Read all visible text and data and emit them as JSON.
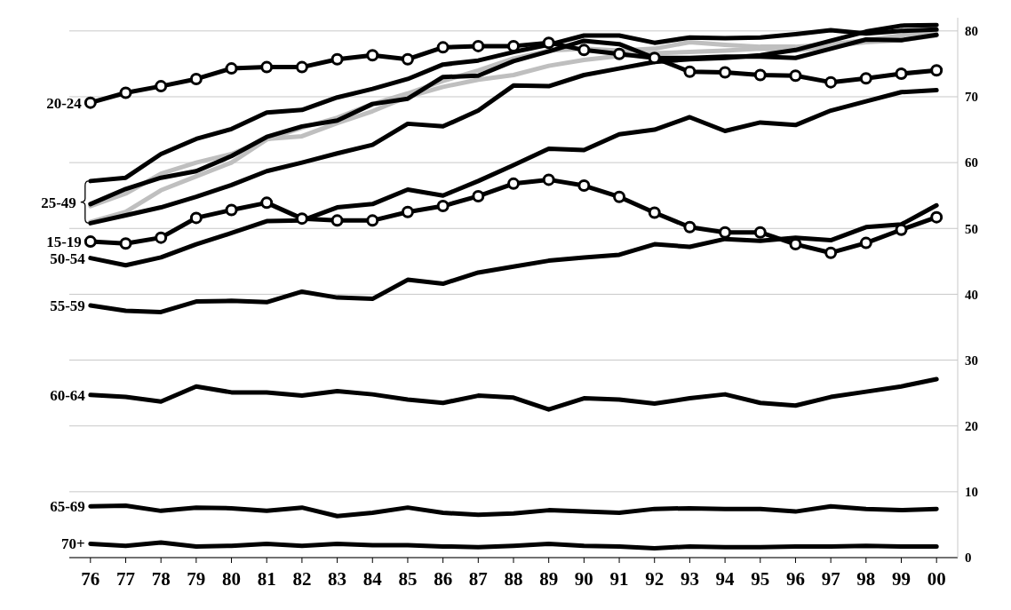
{
  "chart_data": {
    "type": "line",
    "categories": [
      "76",
      "77",
      "78",
      "79",
      "80",
      "81",
      "82",
      "83",
      "84",
      "85",
      "86",
      "87",
      "88",
      "89",
      "90",
      "91",
      "92",
      "93",
      "94",
      "95",
      "96",
      "97",
      "98",
      "99",
      "00"
    ],
    "ylim": [
      0,
      82
    ],
    "yticks": [
      0,
      10,
      20,
      30,
      40,
      50,
      60,
      70,
      80
    ],
    "grid": "y",
    "line_style": "solid",
    "series": [
      {
        "color": "#bfbfbf",
        "values": [
          53.4,
          55.3,
          58.3,
          60.0,
          61.3,
          63.6,
          64.0,
          66.0,
          67.8,
          70.0,
          71.5,
          72.6,
          73.3,
          74.7,
          75.6,
          76.2,
          76.6,
          76.8,
          77.0,
          77.3,
          77.0,
          77.7,
          78.3,
          78.6,
          79.3
        ]
      },
      {
        "color": "#bfbfbf",
        "values": [
          51.0,
          52.5,
          55.8,
          57.9,
          60.0,
          63.5,
          65.3,
          66.8,
          68.9,
          70.5,
          72.4,
          74.0,
          75.8,
          77.0,
          77.3,
          77.0,
          77.3,
          78.3,
          77.9,
          77.6,
          77.6,
          78.0,
          78.6,
          79.3,
          80.0
        ]
      },
      {
        "name": "20-24",
        "color": "#000000",
        "marker": "circle",
        "values": [
          69.1,
          70.6,
          71.6,
          72.7,
          74.3,
          74.5,
          74.5,
          75.7,
          76.3,
          75.7,
          77.5,
          77.7,
          77.7,
          78.2,
          77.1,
          76.5,
          75.9,
          73.8,
          73.7,
          73.3,
          73.2,
          72.2,
          72.8,
          73.5,
          74.0
        ]
      },
      {
        "color": "#000000",
        "values": [
          57.2,
          57.7,
          61.3,
          63.6,
          65.1,
          67.6,
          68.0,
          69.9,
          71.2,
          72.7,
          74.9,
          75.5,
          76.8,
          77.9,
          79.3,
          79.3,
          78.2,
          79.0,
          78.9,
          79.0,
          79.5,
          80.1,
          79.6,
          80.0,
          80.2
        ]
      },
      {
        "name": "25-49",
        "color": "#000000",
        "values": [
          53.7,
          56.0,
          57.7,
          58.7,
          61.0,
          63.9,
          65.5,
          66.4,
          68.9,
          69.7,
          73.0,
          73.2,
          75.4,
          76.9,
          78.5,
          78.0,
          75.9,
          75.9,
          76.1,
          76.1,
          75.9,
          77.3,
          78.7,
          78.6,
          79.4
        ]
      },
      {
        "color": "#000000",
        "values": [
          50.8,
          52.0,
          53.2,
          54.8,
          56.6,
          58.7,
          60.0,
          61.4,
          62.7,
          65.9,
          65.5,
          67.9,
          71.7,
          71.6,
          73.3,
          74.3,
          75.3,
          75.7,
          75.9,
          76.3,
          77.1,
          78.5,
          79.9,
          80.8,
          80.9
        ]
      },
      {
        "name": "15-19",
        "color": "#000000",
        "marker": "circle",
        "values": [
          48.0,
          47.7,
          48.6,
          51.6,
          52.8,
          53.9,
          51.5,
          51.2,
          51.2,
          52.5,
          53.4,
          54.9,
          56.8,
          57.4,
          56.5,
          54.8,
          52.4,
          50.2,
          49.4,
          49.4,
          47.6,
          46.3,
          47.8,
          49.8,
          51.7
        ]
      },
      {
        "name": "50-54",
        "color": "#000000",
        "values": [
          45.5,
          44.4,
          45.6,
          47.6,
          49.3,
          51.1,
          51.2,
          53.2,
          53.7,
          55.9,
          55.0,
          57.2,
          59.6,
          62.1,
          61.9,
          64.3,
          65.0,
          66.9,
          64.8,
          66.1,
          65.7,
          67.9,
          69.3,
          70.7,
          71.0
        ]
      },
      {
        "name": "55-59",
        "color": "#000000",
        "values": [
          38.3,
          37.5,
          37.3,
          38.9,
          39.0,
          38.8,
          40.4,
          39.5,
          39.3,
          42.2,
          41.6,
          43.3,
          44.2,
          45.1,
          45.6,
          46.0,
          47.6,
          47.2,
          48.4,
          48.1,
          48.6,
          48.2,
          50.2,
          50.6,
          53.5
        ]
      },
      {
        "name": "60-64",
        "color": "#000000",
        "values": [
          24.7,
          24.4,
          23.7,
          26.0,
          25.1,
          25.1,
          24.6,
          25.3,
          24.8,
          24.0,
          23.5,
          24.6,
          24.3,
          22.5,
          24.2,
          24.0,
          23.4,
          24.2,
          24.8,
          23.5,
          23.1,
          24.4,
          25.2,
          26.0,
          27.1
        ]
      },
      {
        "name": "65-69",
        "color": "#000000",
        "values": [
          7.8,
          7.9,
          7.1,
          7.6,
          7.5,
          7.1,
          7.6,
          6.3,
          6.8,
          7.6,
          6.8,
          6.5,
          6.7,
          7.2,
          7.0,
          6.8,
          7.4,
          7.5,
          7.4,
          7.4,
          7.0,
          7.8,
          7.4,
          7.2,
          7.4
        ]
      },
      {
        "name": "70+",
        "color": "#000000",
        "values": [
          2.1,
          1.8,
          2.3,
          1.7,
          1.8,
          2.1,
          1.8,
          2.1,
          1.9,
          1.9,
          1.7,
          1.6,
          1.8,
          2.1,
          1.8,
          1.7,
          1.4,
          1.7,
          1.6,
          1.6,
          1.7,
          1.7,
          1.8,
          1.7,
          1.7
        ]
      }
    ]
  }
}
